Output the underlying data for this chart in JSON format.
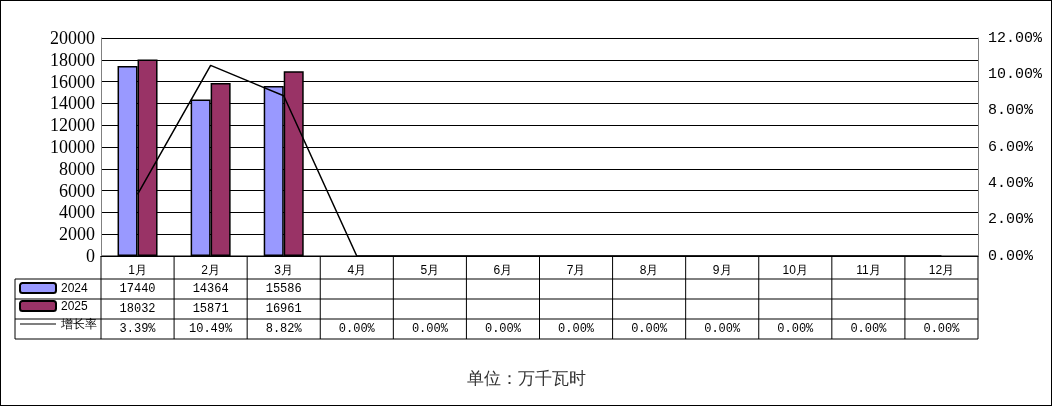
{
  "chart_data": {
    "type": "bar",
    "categories": [
      "1月",
      "2月",
      "3月",
      "4月",
      "5月",
      "6月",
      "7月",
      "8月",
      "9月",
      "10月",
      "11月",
      "12月"
    ],
    "series": [
      {
        "name": "2024",
        "color": "#9999ff",
        "values": [
          17440,
          14364,
          15586,
          null,
          null,
          null,
          null,
          null,
          null,
          null,
          null,
          null
        ],
        "value_labels": [
          "17440",
          "14364",
          "15586",
          null,
          null,
          null,
          null,
          null,
          null,
          null,
          null,
          null
        ]
      },
      {
        "name": "2025",
        "color": "#993366",
        "values": [
          18032,
          15871,
          16961,
          null,
          null,
          null,
          null,
          null,
          null,
          null,
          null,
          null
        ],
        "value_labels": [
          "18032",
          "15871",
          "16961",
          null,
          null,
          null,
          null,
          null,
          null,
          null,
          null,
          null
        ]
      },
      {
        "name": "增长率",
        "type": "line",
        "axis": "y2",
        "color": "#000000",
        "values": [
          3.39,
          10.49,
          8.82,
          0,
          0,
          0,
          0,
          0,
          0,
          0,
          0,
          0
        ],
        "value_labels": [
          "3.39%",
          "10.49%",
          "8.82%",
          "0.00%",
          "0.00%",
          "0.00%",
          "0.00%",
          "0.00%",
          "0.00%",
          "0.00%",
          "0.00%",
          "0.00%"
        ]
      }
    ],
    "ylim": [
      0,
      20000
    ],
    "yticks": [
      0,
      2000,
      4000,
      6000,
      8000,
      10000,
      12000,
      14000,
      16000,
      18000,
      20000
    ],
    "y2lim": [
      0,
      12
    ],
    "y2ticks": [
      {
        "value": 0,
        "label": "0.00%"
      },
      {
        "value": 2,
        "label": "2.00%"
      },
      {
        "value": 4,
        "label": "4.00%"
      },
      {
        "value": 6,
        "label": "6.00%"
      },
      {
        "value": 8,
        "label": "8.00%"
      },
      {
        "value": 10,
        "label": "10.00%"
      },
      {
        "value": 12,
        "label": "12.00%"
      }
    ],
    "grid": "y",
    "legend": "bottom left",
    "marker": "none",
    "annotations": [
      "单位：万千瓦时"
    ]
  }
}
